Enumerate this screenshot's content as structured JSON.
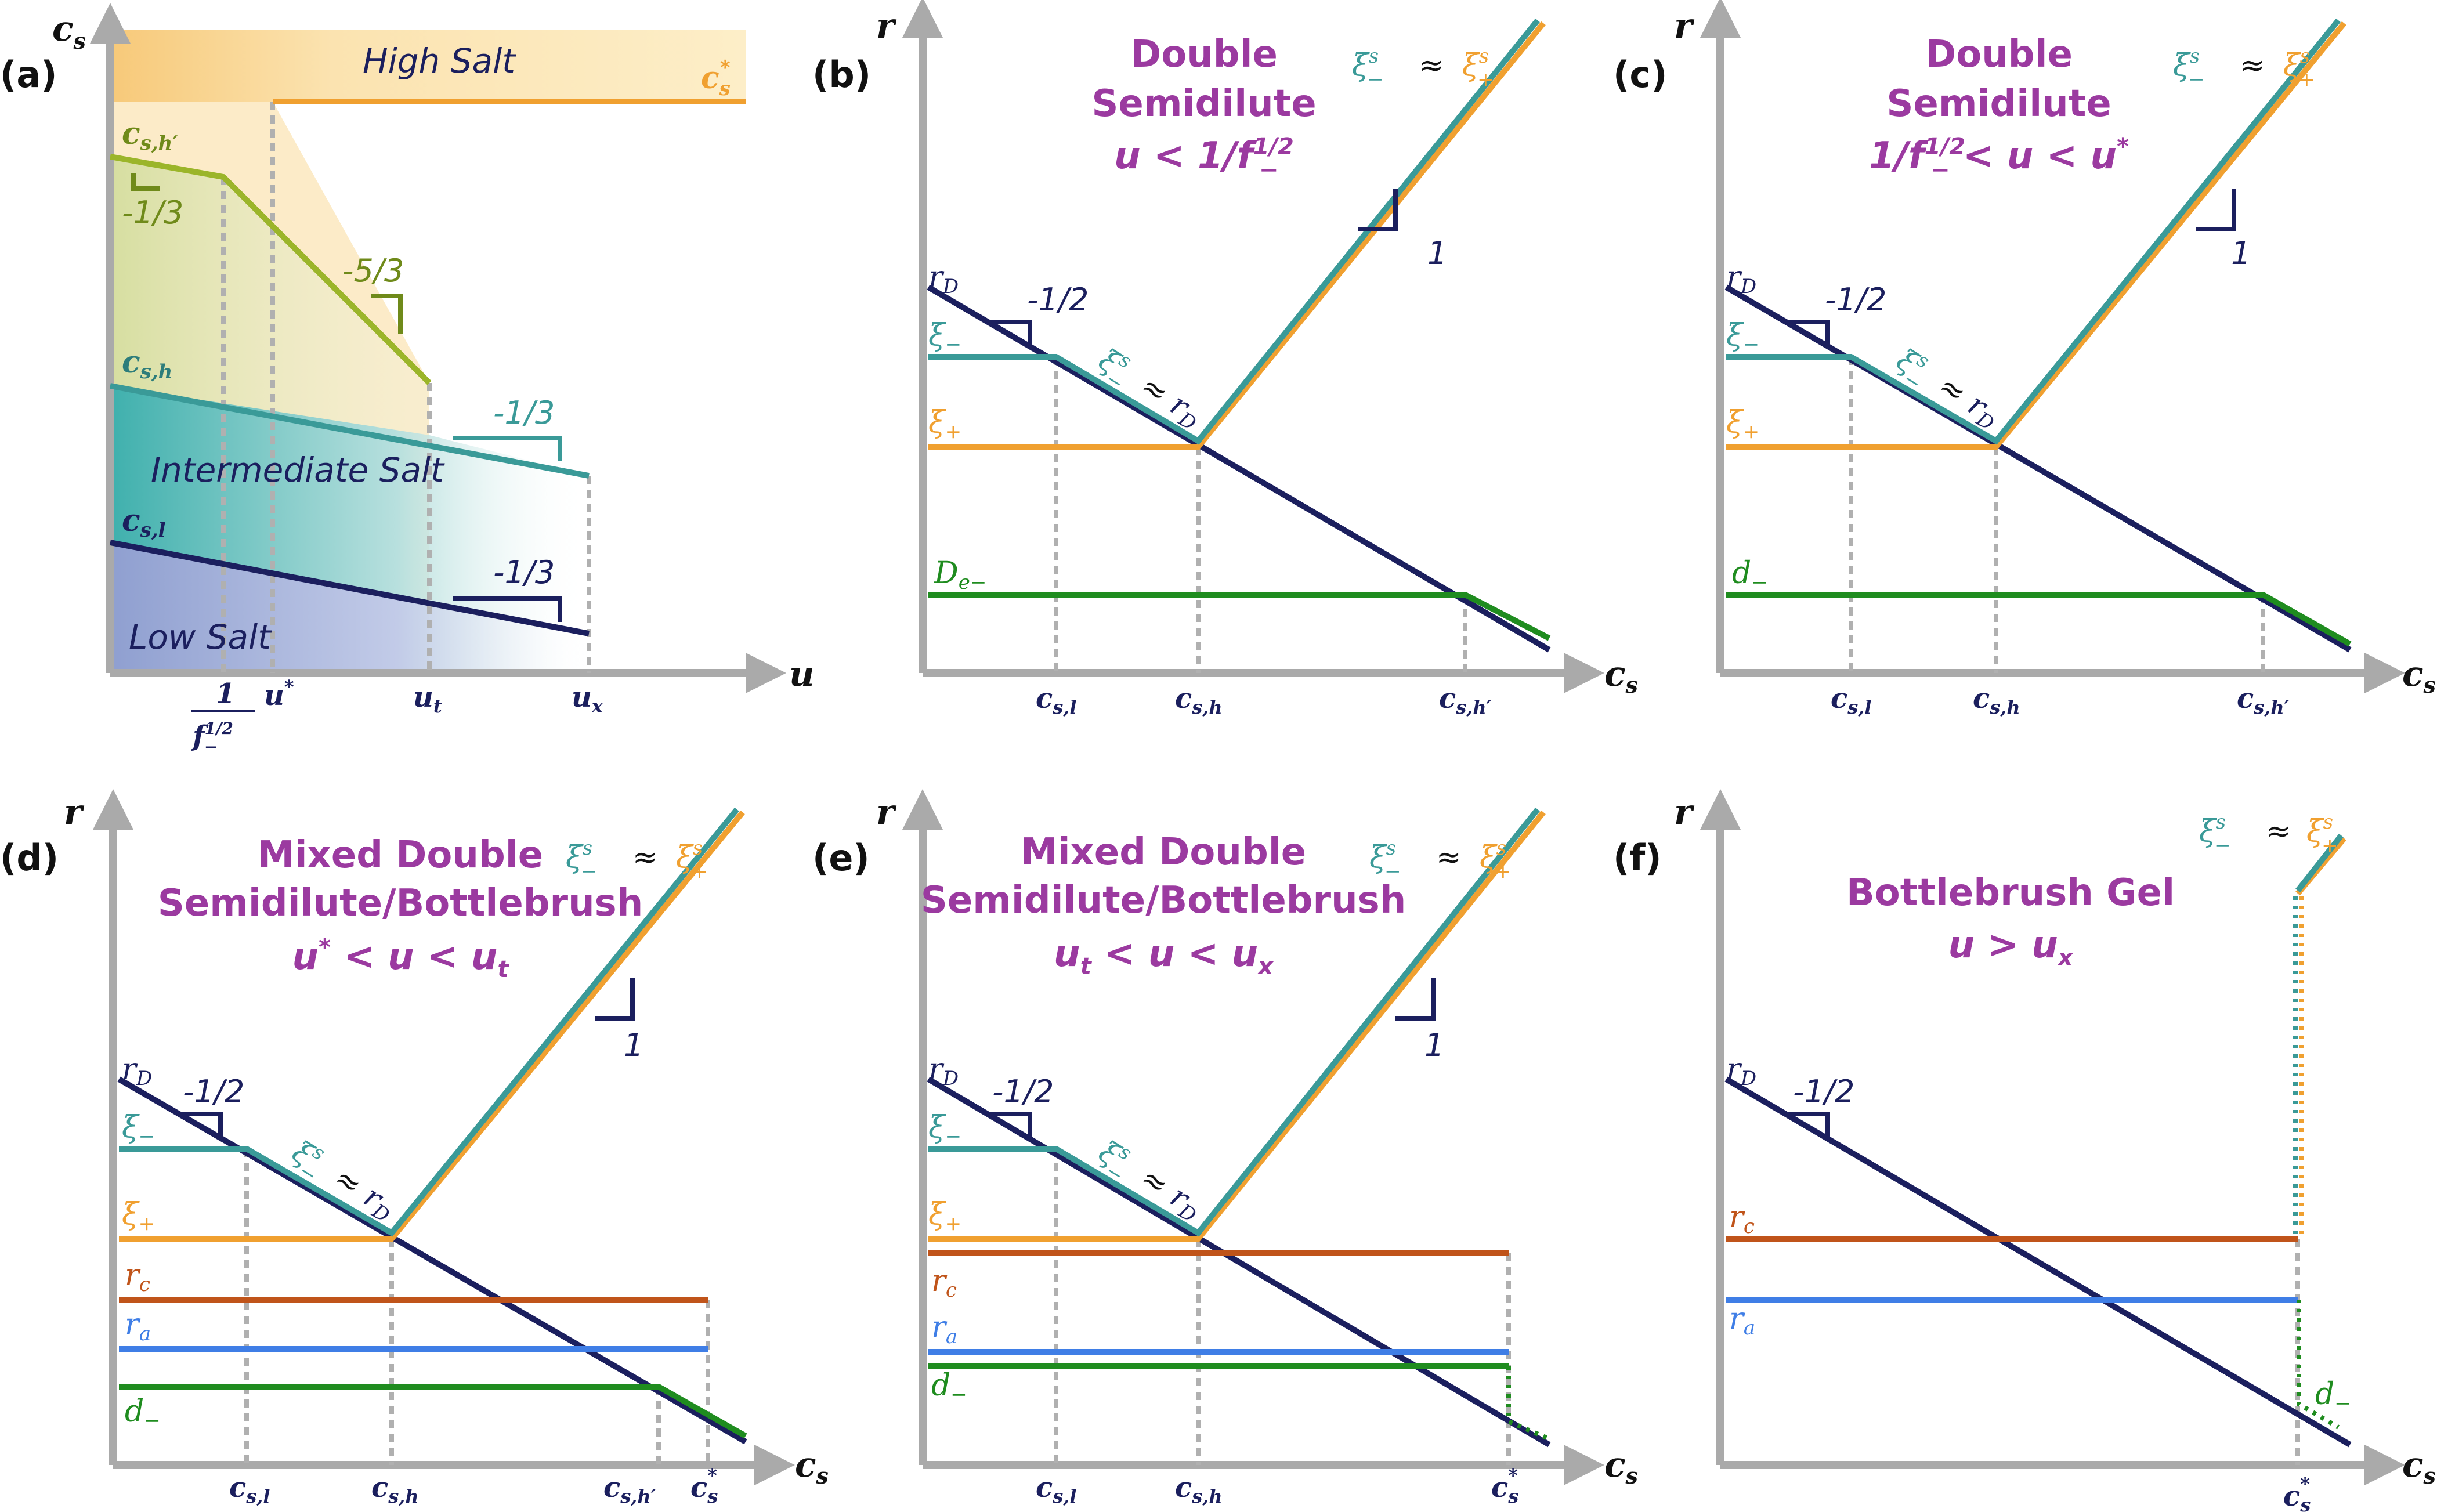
{
  "colors": {
    "navy": "#1b1f5e",
    "teal": "#3a9a98",
    "orange": "#f0a030",
    "lime": "#9bb52a",
    "green": "#1f8c1f",
    "rust": "#c0541a",
    "blue": "#3f7ee6",
    "purple": "#9b3aa0",
    "axis": "#aaaaaa"
  },
  "panel_a": {
    "label": "(a)",
    "y_axis": "c",
    "y_axis_sub": "s",
    "x_axis": "u",
    "regions": {
      "high": "High Salt",
      "intermediate": "Intermediate Salt",
      "low": "Low Salt"
    },
    "curves": {
      "cs_star": "c",
      "cs_star_sub": "s",
      "cs_star_sup": "*",
      "cshp": "c",
      "cshp_sub": "s,h′",
      "csh": "c",
      "csh_sub": "s,h",
      "csl": "c",
      "csl_sub": "s,l"
    },
    "slopes": [
      "-1/3",
      "-5/3",
      "-1/3",
      "-1/3"
    ],
    "ticks": {
      "f_num": "1",
      "f_den": "f",
      "f_den_sup": "1/2",
      "f_den_sub": "−",
      "ustar": "u",
      "ustar_sup": "*",
      "ut": "u",
      "ut_sub": "t",
      "ux": "u",
      "ux_sub": "x"
    }
  },
  "panels": [
    {
      "label": "(b)",
      "title_lines": [
        "Double",
        "Semidilute"
      ],
      "condition": "u < 1/f",
      "condition_sup": "1/2",
      "condition_sub": "−"
    },
    {
      "label": "(c)",
      "title_lines": [
        "Double",
        "Semidilute"
      ],
      "condition": "1/f",
      "condition_sup": "1/2",
      "condition_sub": "−",
      "condition_tail": " < u < u",
      "condition_tail_sup": "*"
    },
    {
      "label": "(d)",
      "title_lines": [
        "Mixed Double",
        "Semidilute/Bottlebrush"
      ],
      "condition": "u",
      "condition_sup": "*",
      "condition_tail": " < u < u",
      "condition_tail_sub": "t"
    },
    {
      "label": "(e)",
      "title_lines": [
        "Mixed Double",
        "Semidilute/Bottlebrush"
      ],
      "condition": "u",
      "condition_sub": "t",
      "condition_tail": " < u < u",
      "condition_tail_sub": "x"
    },
    {
      "label": "(f)",
      "title_lines": [
        "Bottlebrush Gel"
      ],
      "condition": "u > u",
      "condition_sub": "x"
    }
  ],
  "common": {
    "y_axis": "r",
    "x_axis": "c",
    "x_axis_sub": "s",
    "slope_half": "-1/2",
    "slope_one": "1",
    "xi_minus": "ξ",
    "xi_minus_sub": "−",
    "xi_plus": "ξ",
    "xi_plus_sub": "+",
    "approx": "≈",
    "xis_sup": "s",
    "rD": "r",
    "rD_sub": "D",
    "rc": "r",
    "rc_sub": "c",
    "ra": "r",
    "ra_sub": "a",
    "d_minus": "d",
    "d_minus_sub": "−",
    "De_minus": "D",
    "De_minus_sub": "e−",
    "t_csl": "c",
    "t_csl_sub": "s,l",
    "t_csh": "c",
    "t_csh_sub": "s,h",
    "t_cshp": "c",
    "t_cshp_sub": "s,h′",
    "t_csstar": "c",
    "t_csstar_sub": "s",
    "t_csstar_sup": "*"
  }
}
